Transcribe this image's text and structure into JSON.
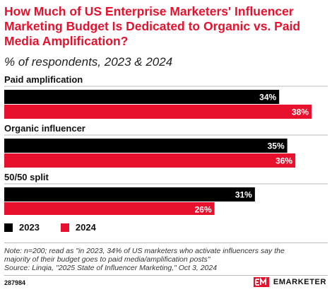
{
  "header": {
    "title": "How Much of US Enterprise Marketers' Influencer Marketing Budget Is Dedicated to Organic vs. Paid Media Amplification?",
    "subtitle": "% of respondents, 2023 & 2024"
  },
  "colors": {
    "series_2023": "#000000",
    "series_2024": "#e8112d",
    "accent": "#e8112d"
  },
  "chart_data": {
    "type": "bar",
    "orientation": "horizontal",
    "categories": [
      "Paid amplification",
      "Organic influencer",
      "50/50 split"
    ],
    "series": [
      {
        "name": "2023",
        "values": [
          34,
          35,
          31
        ],
        "labels": [
          "34%",
          "35%",
          "31%"
        ]
      },
      {
        "name": "2024",
        "values": [
          38,
          36,
          26
        ],
        "labels": [
          "38%",
          "36%",
          "26%"
        ]
      }
    ],
    "xlim": [
      0,
      38
    ],
    "legend_position": "bottom-left",
    "grid": false
  },
  "legend": {
    "items": [
      "2023",
      "2024"
    ]
  },
  "notes": {
    "note_line1": "Note: n=200; read as \"in 2023, 34% of US marketers who activate influencers say the",
    "note_line2": "majority of their budget goes to paid media/amplification posts\"",
    "source": "Source: Linqia, \"2025 State of Influencer Marketing,\" Oct 3, 2024"
  },
  "footer": {
    "chart_id": "287984",
    "brand": "EMARKETER"
  }
}
